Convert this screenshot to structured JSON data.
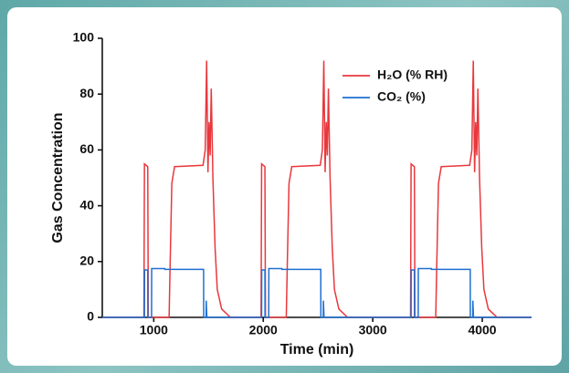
{
  "chart_data": {
    "type": "line",
    "xlabel": "Time (min)",
    "ylabel": "Gas Concentration",
    "xlim": [
      530,
      4450
    ],
    "xticks": [
      1000,
      2000,
      3000,
      4000
    ],
    "ylim": [
      0,
      100
    ],
    "yticks": [
      0,
      20,
      40,
      60,
      80,
      100
    ],
    "legend": "top-right",
    "series": [
      {
        "name": "H₂O (% RH)",
        "color": "#e8383d",
        "x": [
          530,
          910,
          915,
          945,
          950,
          1140,
          1150,
          1165,
          1190,
          1450,
          1470,
          1483,
          1495,
          1505,
          1515,
          1525,
          1540,
          1560,
          1580,
          1620,
          1700,
          1980,
          1985,
          2015,
          2020,
          2210,
          2220,
          2235,
          2260,
          2520,
          2540,
          2553,
          2565,
          2575,
          2585,
          2595,
          2610,
          2630,
          2650,
          2690,
          2770,
          3345,
          3350,
          3380,
          3385,
          3575,
          3585,
          3600,
          3625,
          3885,
          3905,
          3918,
          3930,
          3940,
          3950,
          3960,
          3975,
          3995,
          4015,
          4055,
          4135,
          4450
        ],
        "values": [
          0,
          0,
          55,
          54,
          0,
          0,
          20,
          48,
          54,
          54.5,
          60,
          92,
          52,
          70,
          58,
          82,
          50,
          25,
          10,
          3,
          0,
          0,
          55,
          54,
          0,
          0,
          20,
          48,
          54,
          54.5,
          60,
          92,
          52,
          70,
          58,
          82,
          50,
          25,
          10,
          3,
          0,
          0,
          55,
          54,
          0,
          0,
          20,
          48,
          54,
          54.5,
          60,
          92,
          52,
          70,
          58,
          82,
          50,
          25,
          10,
          3,
          0,
          0
        ]
      },
      {
        "name": "CO₂ (%)",
        "color": "#1f6fd1",
        "x": [
          530,
          915,
          916,
          945,
          946,
          980,
          981,
          1100,
          1101,
          1455,
          1456,
          1478,
          1479,
          1485,
          1985,
          1986,
          2015,
          2016,
          2050,
          2051,
          2170,
          2171,
          2525,
          2526,
          2548,
          2549,
          2555,
          3350,
          3351,
          3380,
          3381,
          3415,
          3416,
          3535,
          3536,
          3890,
          3891,
          3913,
          3914,
          3920,
          4450
        ],
        "values": [
          0,
          0,
          17,
          17,
          0,
          0,
          17.5,
          17.5,
          17.2,
          17.2,
          0,
          0,
          6,
          0,
          0,
          17,
          17,
          0,
          0,
          17.5,
          17.5,
          17.2,
          17.2,
          0,
          0,
          6,
          0,
          0,
          17,
          17,
          0,
          0,
          17.5,
          17.5,
          17.2,
          17.2,
          0,
          0,
          6,
          0,
          0
        ]
      }
    ]
  }
}
